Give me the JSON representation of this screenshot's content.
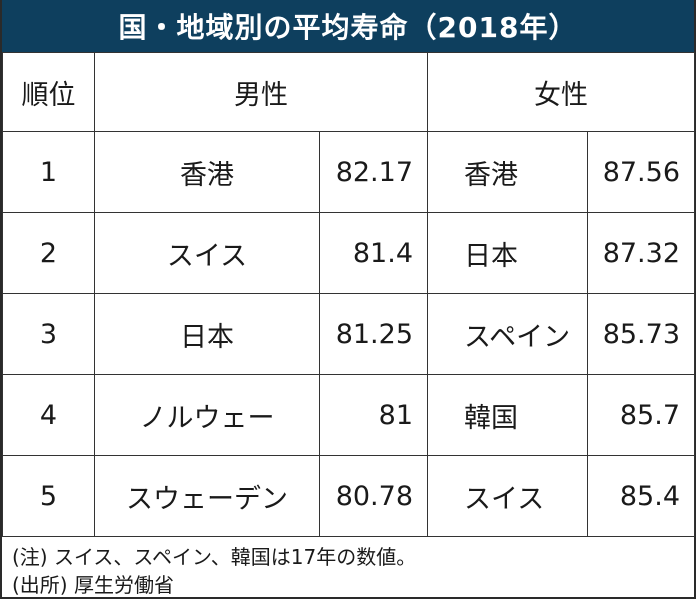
{
  "title": "国・地域別の平均寿命（2018年）",
  "headers": {
    "rank": "順位",
    "male": "男性",
    "female": "女性"
  },
  "rows": [
    {
      "rank": "1",
      "male_name": "香港",
      "male_value": "82.17",
      "female_name": "香港",
      "female_value": "87.56"
    },
    {
      "rank": "2",
      "male_name": "スイス",
      "male_value": "81.4",
      "female_name": "日本",
      "female_value": "87.32"
    },
    {
      "rank": "3",
      "male_name": "日本",
      "male_value": "81.25",
      "female_name": "スペイン",
      "female_value": "85.73"
    },
    {
      "rank": "4",
      "male_name": "ノルウェー",
      "male_value": "81",
      "female_name": "韓国",
      "female_value": "85.7"
    },
    {
      "rank": "5",
      "male_name": "スウェーデン",
      "male_value": "80.78",
      "female_name": "スイス",
      "female_value": "85.4"
    }
  ],
  "notes": [
    "(注) スイス、スペイン、韓国は17年の数値。",
    "(出所) 厚生労働省"
  ],
  "colors": {
    "title_background": "#0e3f5e",
    "title_text": "#ffffff",
    "border": "#333333"
  }
}
